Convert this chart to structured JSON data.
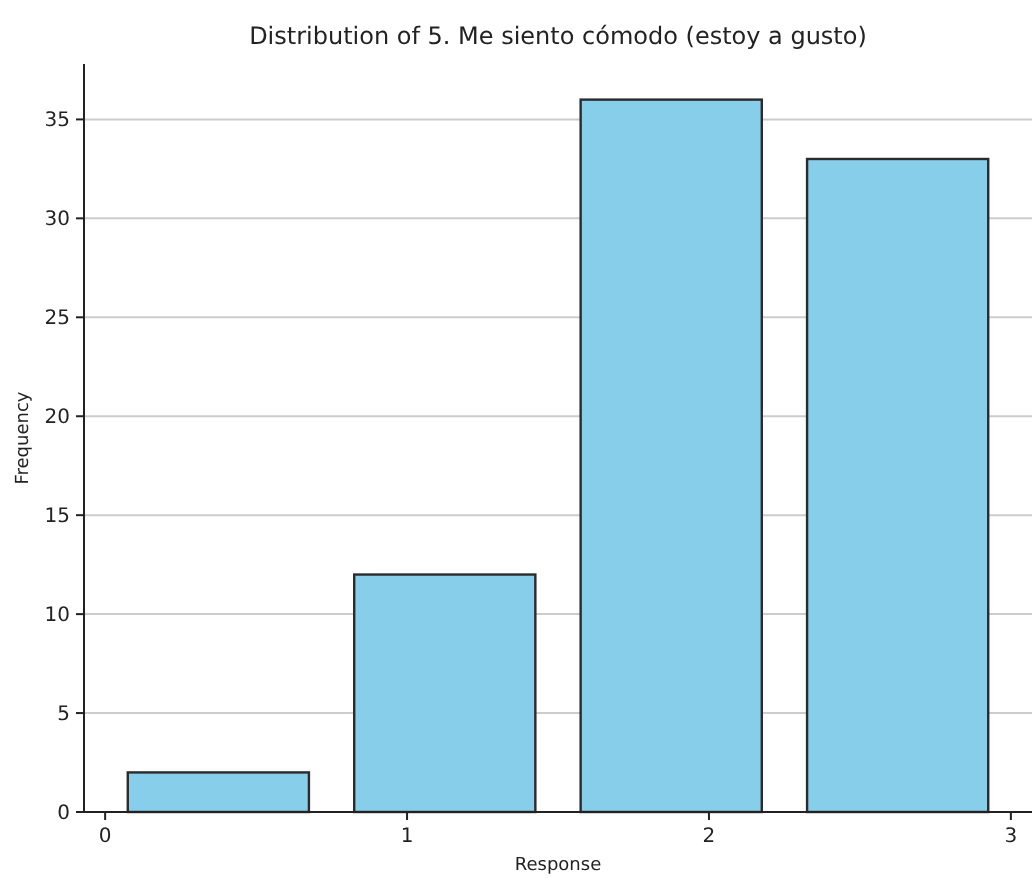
{
  "chart_data": {
    "type": "histogram",
    "title": "Distribution of 5. Me siento cómodo (estoy a gusto)",
    "xlabel": "Response",
    "ylabel": "Frequency",
    "bins": [
      0,
      0.75,
      1.5,
      2.25,
      3
    ],
    "values": [
      2,
      12,
      36,
      33
    ],
    "color": "#87ceeb",
    "xlim": [
      -0.07,
      3.07
    ],
    "xticks": [
      0,
      1,
      2,
      3
    ],
    "ylim": [
      0,
      37.8
    ],
    "yticks": [
      0,
      5,
      10,
      15,
      20,
      25,
      30,
      35
    ],
    "grid": "y"
  }
}
